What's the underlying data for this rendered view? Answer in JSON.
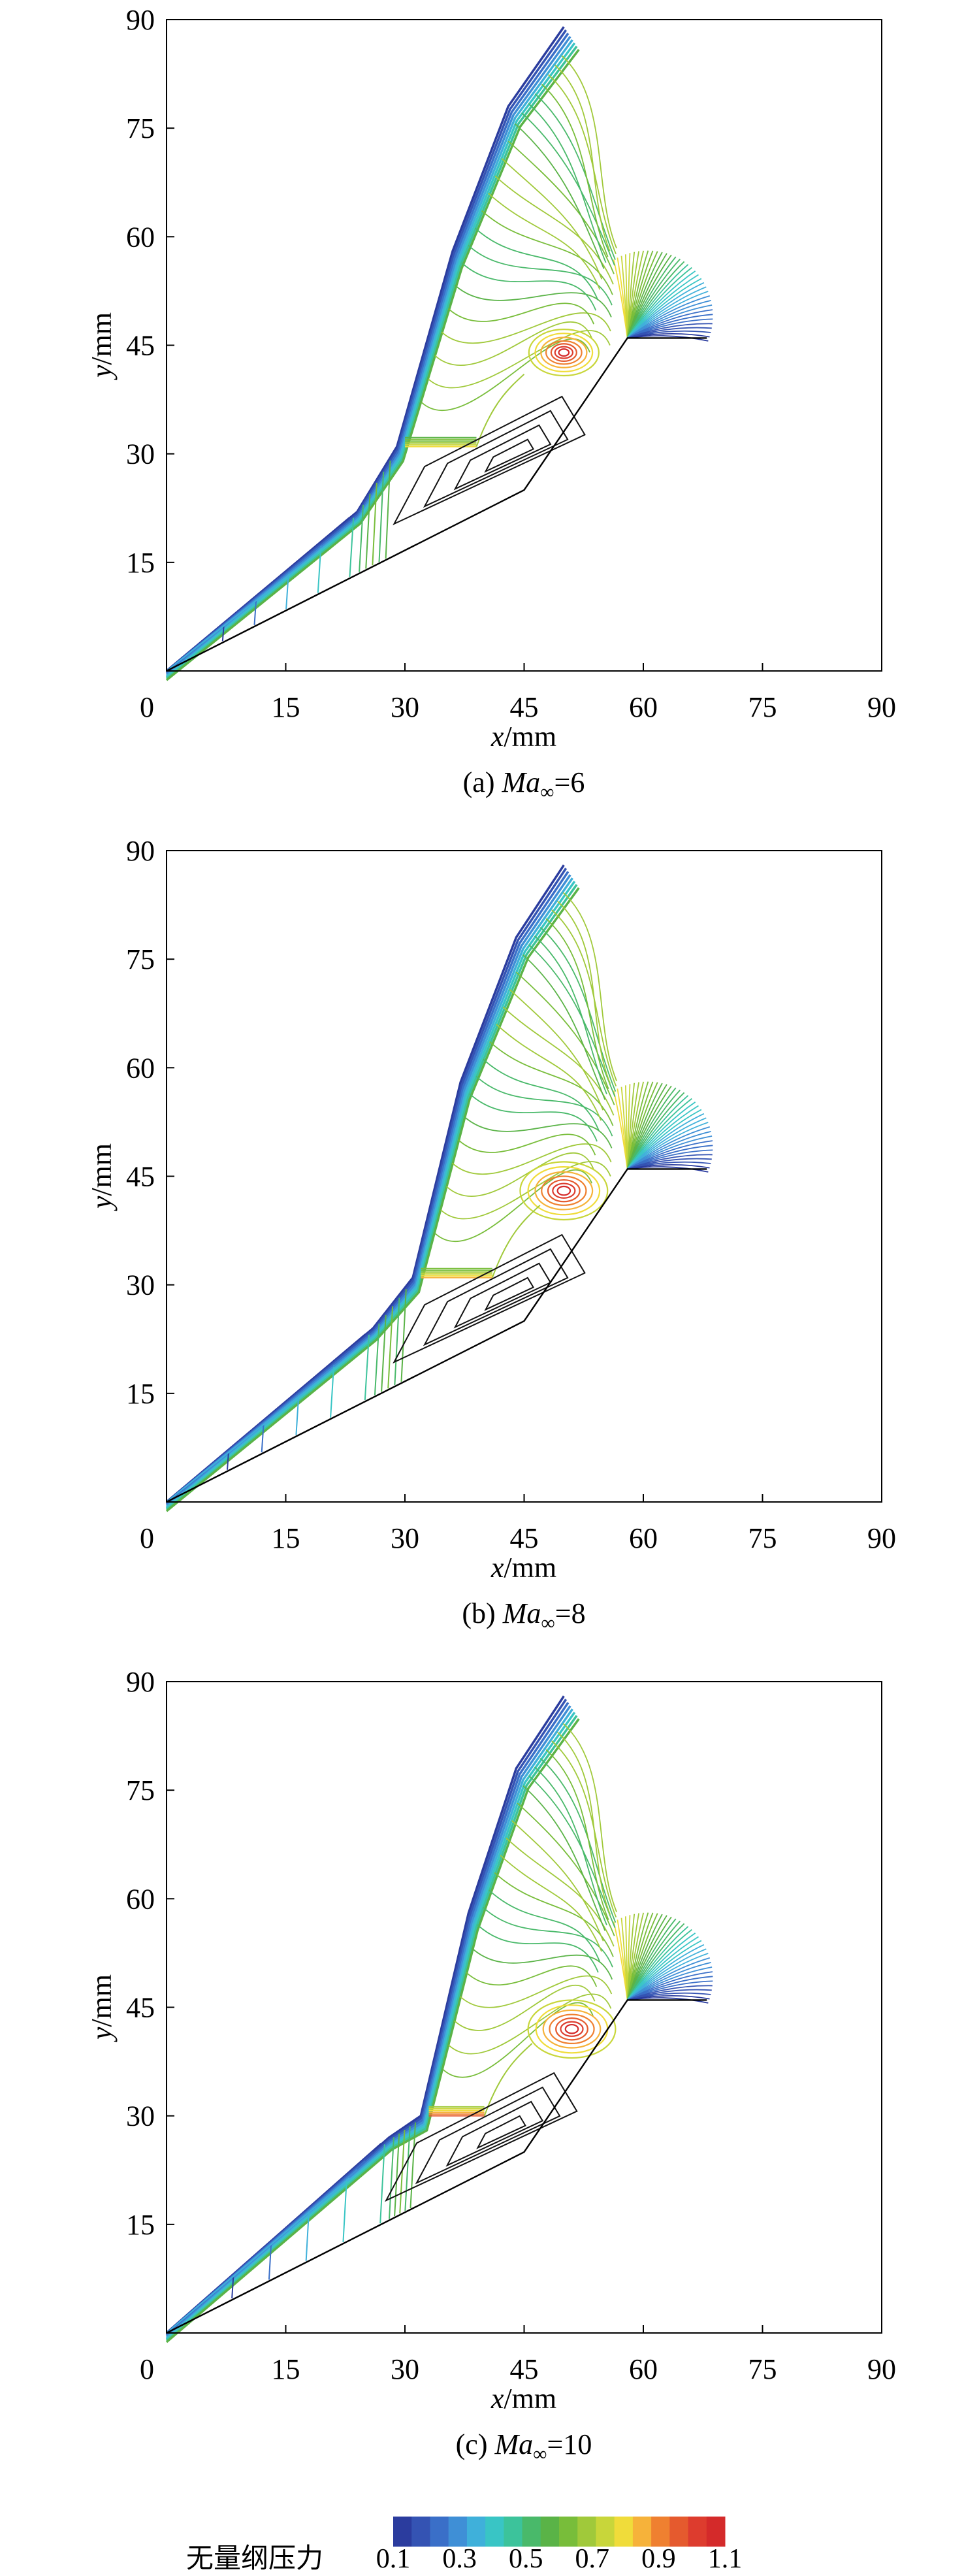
{
  "chart_data": [
    {
      "type": "contour",
      "id": "a",
      "caption": "(a) Ma∞=6",
      "caption_prefix": "(a) ",
      "caption_var": "Ma",
      "caption_sub": "∞",
      "caption_value": "=6",
      "mach": 6,
      "xlabel": "x/mm",
      "ylabel": "y/mm",
      "xlim": [
        0,
        90
      ],
      "ylim": [
        0,
        90
      ],
      "xticks": [
        0,
        15,
        30,
        45,
        60,
        75,
        90
      ],
      "yticks": [
        15,
        30,
        45,
        60,
        75,
        90
      ],
      "tick_labels_x": [
        "0",
        "15",
        "30",
        "45",
        "60",
        "75",
        "90"
      ],
      "tick_labels_y": [
        "15",
        "30",
        "45",
        "60",
        "75",
        "90"
      ],
      "body": [
        [
          0,
          0
        ],
        [
          45,
          25
        ],
        [
          58,
          46
        ],
        [
          68,
          46
        ]
      ],
      "shock": [
        [
          0,
          0
        ],
        [
          24,
          22
        ],
        [
          29,
          31
        ],
        [
          36,
          58
        ],
        [
          43,
          78
        ],
        [
          50,
          89
        ]
      ],
      "shelf": {
        "x0": 30,
        "x1": 39,
        "y": 31,
        "value": 0.8
      },
      "hotspot": {
        "x": 50,
        "y": 44,
        "value": 1.05
      },
      "vortex_center": [
        44,
        30
      ]
    },
    {
      "type": "contour",
      "id": "b",
      "caption": "(b) Ma∞=8",
      "caption_prefix": "(b) ",
      "caption_var": "Ma",
      "caption_sub": "∞",
      "caption_value": "=8",
      "mach": 8,
      "xlabel": "x/mm",
      "ylabel": "y/mm",
      "xlim": [
        0,
        90
      ],
      "ylim": [
        0,
        90
      ],
      "xticks": [
        0,
        15,
        30,
        45,
        60,
        75,
        90
      ],
      "yticks": [
        15,
        30,
        45,
        60,
        75,
        90
      ],
      "tick_labels_x": [
        "0",
        "15",
        "30",
        "45",
        "60",
        "75",
        "90"
      ],
      "tick_labels_y": [
        "15",
        "30",
        "45",
        "60",
        "75",
        "90"
      ],
      "body": [
        [
          0,
          0
        ],
        [
          45,
          25
        ],
        [
          58,
          46
        ],
        [
          68,
          46
        ]
      ],
      "shock": [
        [
          0,
          0
        ],
        [
          26,
          24
        ],
        [
          31,
          31
        ],
        [
          37,
          58
        ],
        [
          44,
          78
        ],
        [
          50,
          88
        ]
      ],
      "shelf": {
        "x0": 32,
        "x1": 41,
        "y": 31,
        "value": 0.85
      },
      "hotspot": {
        "x": 50,
        "y": 43,
        "value": 1.08
      },
      "vortex_center": [
        44,
        29
      ]
    },
    {
      "type": "contour",
      "id": "c",
      "caption": "(c) Ma∞=10",
      "caption_prefix": "(c) ",
      "caption_var": "Ma",
      "caption_sub": "∞",
      "caption_value": "=10",
      "mach": 10,
      "xlabel": "x/mm",
      "ylabel": "y/mm",
      "xlim": [
        0,
        90
      ],
      "ylim": [
        0,
        90
      ],
      "xticks": [
        0,
        15,
        30,
        45,
        60,
        75,
        90
      ],
      "yticks": [
        15,
        30,
        45,
        60,
        75,
        90
      ],
      "tick_labels_x": [
        "0",
        "15",
        "30",
        "45",
        "60",
        "75",
        "90"
      ],
      "tick_labels_y": [
        "15",
        "30",
        "45",
        "60",
        "75",
        "90"
      ],
      "body": [
        [
          0,
          0
        ],
        [
          45,
          25
        ],
        [
          58,
          46
        ],
        [
          68,
          46
        ]
      ],
      "shock": [
        [
          0,
          0
        ],
        [
          28,
          27
        ],
        [
          32,
          30
        ],
        [
          38,
          58
        ],
        [
          44,
          78
        ],
        [
          50,
          88
        ]
      ],
      "shelf": {
        "x0": 33,
        "x1": 40,
        "y": 30,
        "value": 0.95
      },
      "hotspot": {
        "x": 51,
        "y": 42,
        "value": 1.0
      },
      "vortex_center": [
        43,
        28
      ]
    }
  ],
  "colorbar": {
    "title": "无量纲压力",
    "tick_labels": [
      "0.1",
      "0.3",
      "0.5",
      "0.7",
      "0.9",
      "1.1"
    ],
    "range": [
      0.1,
      1.1
    ],
    "colors": [
      "#2b3c9e",
      "#3453b3",
      "#3a6fc8",
      "#3f8fd6",
      "#3fb0da",
      "#39c5c5",
      "#3cc39b",
      "#49b96a",
      "#5ab347",
      "#78bd3a",
      "#a0c93a",
      "#c8d63a",
      "#f0dc3a",
      "#f6b23a",
      "#ef8030",
      "#e55a2e",
      "#dd3c2e",
      "#d42a2a"
    ]
  }
}
